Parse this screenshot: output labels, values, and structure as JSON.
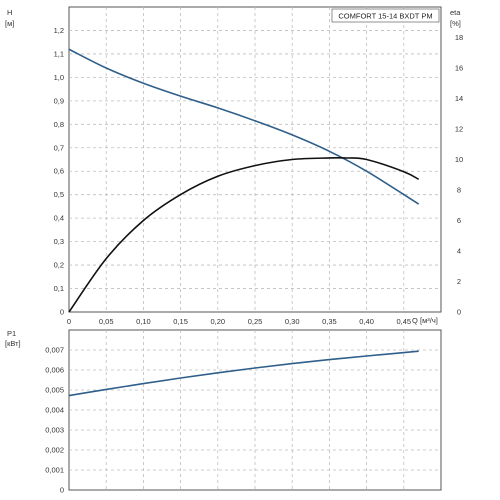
{
  "chart_data": [
    {
      "type": "line",
      "title": "COMFORT 15-14 BXDT PM",
      "xlabel": "Q",
      "xunit": "[м³/ч]",
      "ylabel": "H",
      "yunit": "[м]",
      "y2label": "eta",
      "y2unit": "[%]",
      "xlim": [
        0,
        0.5
      ],
      "ylim": [
        0,
        1.3
      ],
      "y2lim": [
        0,
        20
      ],
      "grid": true,
      "x_ticks": [
        "0",
        "0,05",
        "0,10",
        "0,15",
        "0,20",
        "0,25",
        "0,30",
        "0,35",
        "0,40",
        "0,45"
      ],
      "y_ticks": [
        "0",
        "0,1",
        "0,2",
        "0,3",
        "0,4",
        "0,5",
        "0,6",
        "0,7",
        "0,8",
        "0,9",
        "1,0",
        "1,1",
        "1,2"
      ],
      "y2_ticks": [
        "0",
        "2",
        "4",
        "6",
        "8",
        "10",
        "12",
        "14",
        "16",
        "18"
      ],
      "series": [
        {
          "axis": "left",
          "color": "#2f5f8a",
          "x": [
            0,
            0.05,
            0.1,
            0.15,
            0.2,
            0.25,
            0.3,
            0.35,
            0.4,
            0.47
          ],
          "y": [
            1.12,
            1.04,
            0.975,
            0.92,
            0.87,
            0.815,
            0.755,
            0.685,
            0.6,
            0.46
          ]
        },
        {
          "axis": "right",
          "color": "#111111",
          "x": [
            0,
            0.05,
            0.1,
            0.15,
            0.2,
            0.25,
            0.3,
            0.35,
            0.37,
            0.4,
            0.45,
            0.47
          ],
          "y": [
            0,
            3.5,
            6.0,
            7.7,
            8.9,
            9.6,
            10.0,
            10.1,
            10.1,
            10.0,
            9.2,
            8.7
          ]
        }
      ]
    },
    {
      "type": "line",
      "title": "",
      "xlabel": "",
      "ylabel": "P1",
      "yunit": "[кВт]",
      "xlim": [
        0,
        0.5
      ],
      "ylim": [
        0,
        0.008
      ],
      "grid": true,
      "y_ticks": [
        "0",
        "0,001",
        "0,002",
        "0,003",
        "0,004",
        "0,005",
        "0,006",
        "0,007"
      ],
      "series": [
        {
          "axis": "left",
          "color": "#2f5f8a",
          "x": [
            0,
            0.05,
            0.1,
            0.15,
            0.2,
            0.25,
            0.3,
            0.35,
            0.4,
            0.47
          ],
          "y": [
            0.00472,
            0.00503,
            0.00532,
            0.0056,
            0.00586,
            0.0061,
            0.00632,
            0.00652,
            0.0067,
            0.00694
          ]
        }
      ]
    }
  ]
}
